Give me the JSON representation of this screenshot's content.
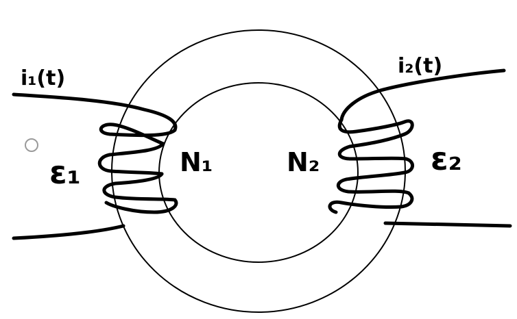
{
  "diagram": {
    "subject": "transformer core with two windings",
    "labels": {
      "current_left": "i₁(t)",
      "current_right": "i₂(t)",
      "turns_left": "N₁",
      "turns_right": "N₂",
      "emf_left": "ε₁",
      "emf_right": "ε₂"
    },
    "colors": {
      "ink": "#000000",
      "background": "#ffffff",
      "marker": "#9a9a9a"
    }
  }
}
